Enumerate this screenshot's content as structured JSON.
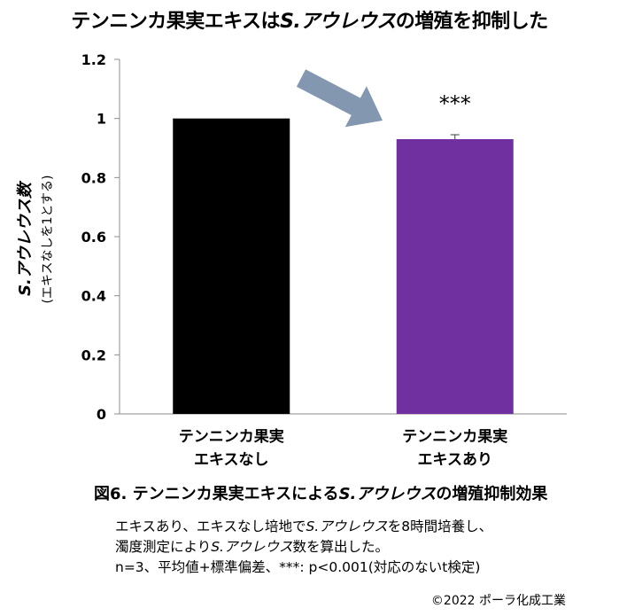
{
  "title": {
    "pre": "テンニンカ果実エキスは",
    "ital": "S.アウレウス",
    "post": "の増殖を抑制した"
  },
  "chart_data": {
    "type": "bar",
    "categories": [
      [
        "テンニンカ果実",
        "エキスなし"
      ],
      [
        "テンニンカ果実",
        "エキスあり"
      ]
    ],
    "values": [
      1.0,
      0.93
    ],
    "errors": [
      0.0,
      0.015
    ],
    "colors": [
      "#000000",
      "#7030a0"
    ],
    "ylim": [
      0,
      1.2
    ],
    "yticks": [
      "0",
      "0.2",
      "0.4",
      "0.6",
      "0.8",
      "1",
      "1.2"
    ],
    "ylabel_main": "S.アウレウス数",
    "ylabel_sub": "(エキスなしを1とする)",
    "annotation": "***",
    "arrow_color": "#8497b0"
  },
  "caption": {
    "fig_pre": "図6. テンニンカ果実エキスによる",
    "fig_ital": "S.アウレウス",
    "fig_post": "の増殖抑制効果",
    "line1_pre": "エキスあり、エキスなし培地で",
    "line1_ital": "S.アウレウス",
    "line1_post": "を8時間培養し、",
    "line2_pre": "濁度測定により",
    "line2_ital": "S.アウレウス",
    "line2_post": "数を算出した。",
    "line3": "n=3、平均値+標準偏差、***: p<0.001(対応のないt検定)"
  },
  "copyright": "©2022 ポーラ化成工業"
}
